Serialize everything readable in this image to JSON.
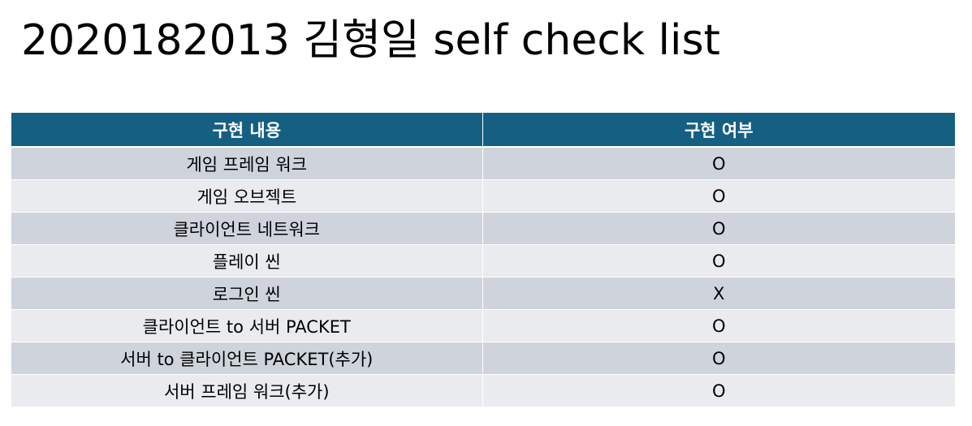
{
  "title": "2020182013 김형일 self check list",
  "colors": {
    "header_bg": "#155f82",
    "header_text": "#ffffff",
    "row_odd_bg": "#cfd4dc",
    "row_even_bg": "#e9ebef"
  },
  "table": {
    "headers": [
      "구현 내용",
      "구현 여부"
    ],
    "rows": [
      {
        "item": "게임 프레임 워크",
        "status": "O"
      },
      {
        "item": "게임 오브젝트",
        "status": "O"
      },
      {
        "item": "클라이언트 네트워크",
        "status": "O"
      },
      {
        "item": "플레이 씬",
        "status": "O"
      },
      {
        "item": "로그인 씬",
        "status": "X"
      },
      {
        "item": "클라이언트 to 서버 PACKET",
        "status": "O"
      },
      {
        "item": "서버 to 클라이언트 PACKET(추가)",
        "status": "O"
      },
      {
        "item": "서버 프레임 워크(추가)",
        "status": "O"
      }
    ]
  }
}
